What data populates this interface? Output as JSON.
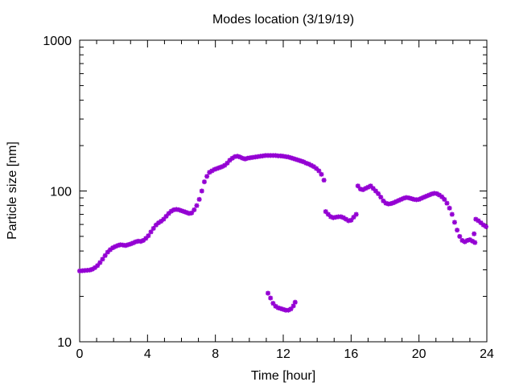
{
  "colors": {
    "series": "#9400d3",
    "axis": "#000000"
  },
  "chart_data": {
    "type": "scatter",
    "title": "Modes location (3/19/19)",
    "xlabel": "Time [hour]",
    "ylabel": "Particle size [nm]",
    "xlim": [
      0,
      24
    ],
    "ylim": [
      10,
      1000
    ],
    "yscale": "log",
    "grid": false,
    "legend": "none",
    "xticks": [
      0,
      4,
      8,
      12,
      16,
      20,
      24
    ],
    "xtick_labels": [
      "0",
      "4",
      "8",
      "12",
      "16",
      "20",
      "24"
    ],
    "yticks": [
      10,
      100,
      1000
    ],
    "ytick_labels": [
      "10",
      "100",
      "1000"
    ],
    "series": [
      {
        "marker": "star",
        "points": [
          [
            0.0,
            29.5
          ],
          [
            0.15,
            29.6
          ],
          [
            0.3,
            29.7
          ],
          [
            0.45,
            29.8
          ],
          [
            0.6,
            29.9
          ],
          [
            0.75,
            30.3
          ],
          [
            0.9,
            31.0
          ],
          [
            1.05,
            32.0
          ],
          [
            1.2,
            33.5
          ],
          [
            1.35,
            35.3
          ],
          [
            1.5,
            37.3
          ],
          [
            1.65,
            39.3
          ],
          [
            1.8,
            40.8
          ],
          [
            1.95,
            42.0
          ],
          [
            2.1,
            42.8
          ],
          [
            2.25,
            43.5
          ],
          [
            2.4,
            44.0
          ],
          [
            2.55,
            43.8
          ],
          [
            2.7,
            43.5
          ],
          [
            2.85,
            44.0
          ],
          [
            3.0,
            44.5
          ],
          [
            3.15,
            45.2
          ],
          [
            3.3,
            46.0
          ],
          [
            3.45,
            46.5
          ],
          [
            3.6,
            46.3
          ],
          [
            3.75,
            47.0
          ],
          [
            3.9,
            48.5
          ],
          [
            4.05,
            50.5
          ],
          [
            4.2,
            53.5
          ],
          [
            4.35,
            56.5
          ],
          [
            4.5,
            59.5
          ],
          [
            4.65,
            61.5
          ],
          [
            4.8,
            63.0
          ],
          [
            4.95,
            65.0
          ],
          [
            5.1,
            68.0
          ],
          [
            5.25,
            71.0
          ],
          [
            5.4,
            73.5
          ],
          [
            5.55,
            75.0
          ],
          [
            5.7,
            75.5
          ],
          [
            5.85,
            75.0
          ],
          [
            6.0,
            74.0
          ],
          [
            6.15,
            73.0
          ],
          [
            6.3,
            72.0
          ],
          [
            6.45,
            71.0
          ],
          [
            6.6,
            71.5
          ],
          [
            6.75,
            75.0
          ],
          [
            6.9,
            80.0
          ],
          [
            7.05,
            88.0
          ],
          [
            7.2,
            100.0
          ],
          [
            7.35,
            115.0
          ],
          [
            7.5,
            125.0
          ],
          [
            7.65,
            133.0
          ],
          [
            7.8,
            136.0
          ],
          [
            7.95,
            139.0
          ],
          [
            8.1,
            141.0
          ],
          [
            8.25,
            143.0
          ],
          [
            8.4,
            145.0
          ],
          [
            8.55,
            148.0
          ],
          [
            8.7,
            153.0
          ],
          [
            8.85,
            160.0
          ],
          [
            9.0,
            165.0
          ],
          [
            9.15,
            169.0
          ],
          [
            9.3,
            170.0
          ],
          [
            9.45,
            168.0
          ],
          [
            9.6,
            165.0
          ],
          [
            9.75,
            163.0
          ],
          [
            9.9,
            165.0
          ],
          [
            10.05,
            166.0
          ],
          [
            10.2,
            167.0
          ],
          [
            10.35,
            168.0
          ],
          [
            10.5,
            169.0
          ],
          [
            10.65,
            170.0
          ],
          [
            10.8,
            171.0
          ],
          [
            10.95,
            172.0
          ],
          [
            11.1,
            172.0
          ],
          [
            11.25,
            172.0
          ],
          [
            11.4,
            172.0
          ],
          [
            11.55,
            172.0
          ],
          [
            11.7,
            171.0
          ],
          [
            11.85,
            171.0
          ],
          [
            12.0,
            170.0
          ],
          [
            12.15,
            169.0
          ],
          [
            12.3,
            168.0
          ],
          [
            12.45,
            166.0
          ],
          [
            12.6,
            164.0
          ],
          [
            12.75,
            162.0
          ],
          [
            12.9,
            160.0
          ],
          [
            13.05,
            158.0
          ],
          [
            13.2,
            156.0
          ],
          [
            13.35,
            153.0
          ],
          [
            13.5,
            151.0
          ],
          [
            13.65,
            148.0
          ],
          [
            13.8,
            145.0
          ],
          [
            13.95,
            141.0
          ],
          [
            14.1,
            136.0
          ],
          [
            14.25,
            129.0
          ],
          [
            14.4,
            118.0
          ],
          [
            14.5,
            73.0
          ],
          [
            14.65,
            70.0
          ],
          [
            14.8,
            67.5
          ],
          [
            14.95,
            66.5
          ],
          [
            15.1,
            67.0
          ],
          [
            15.25,
            67.5
          ],
          [
            15.4,
            67.5
          ],
          [
            15.55,
            66.5
          ],
          [
            15.7,
            65.0
          ],
          [
            15.85,
            63.5
          ],
          [
            16.0,
            64.0
          ],
          [
            16.15,
            67.0
          ],
          [
            16.3,
            70.0
          ],
          [
            16.4,
            108.0
          ],
          [
            16.55,
            103.0
          ],
          [
            16.7,
            102.0
          ],
          [
            16.85,
            104.0
          ],
          [
            17.0,
            106.0
          ],
          [
            17.15,
            108.0
          ],
          [
            17.3,
            104.0
          ],
          [
            17.45,
            100.0
          ],
          [
            17.6,
            96.0
          ],
          [
            17.75,
            91.0
          ],
          [
            17.9,
            86.0
          ],
          [
            18.05,
            83.0
          ],
          [
            18.2,
            82.0
          ],
          [
            18.35,
            82.5
          ],
          [
            18.5,
            83.5
          ],
          [
            18.65,
            85.0
          ],
          [
            18.8,
            86.5
          ],
          [
            18.95,
            88.0
          ],
          [
            19.1,
            89.5
          ],
          [
            19.25,
            90.5
          ],
          [
            19.4,
            90.0
          ],
          [
            19.55,
            89.0
          ],
          [
            19.7,
            88.0
          ],
          [
            19.85,
            87.5
          ],
          [
            20.0,
            88.0
          ],
          [
            20.15,
            89.5
          ],
          [
            20.3,
            91.0
          ],
          [
            20.45,
            92.5
          ],
          [
            20.6,
            94.0
          ],
          [
            20.75,
            95.5
          ],
          [
            20.9,
            96.5
          ],
          [
            21.05,
            96.0
          ],
          [
            21.2,
            94.0
          ],
          [
            21.35,
            91.5
          ],
          [
            21.5,
            88.0
          ],
          [
            21.65,
            83.0
          ],
          [
            21.8,
            77.0
          ],
          [
            21.95,
            70.0
          ],
          [
            22.1,
            62.0
          ],
          [
            22.25,
            55.0
          ],
          [
            22.4,
            50.0
          ],
          [
            22.55,
            47.0
          ],
          [
            22.7,
            46.0
          ],
          [
            22.85,
            47.0
          ],
          [
            23.0,
            47.5
          ],
          [
            23.15,
            46.5
          ],
          [
            23.3,
            45.5
          ],
          [
            23.35,
            65.0
          ],
          [
            23.5,
            63.5
          ],
          [
            23.65,
            61.5
          ],
          [
            23.8,
            59.5
          ],
          [
            23.95,
            58.0
          ],
          [
            23.25,
            52.0
          ],
          [
            11.1,
            21.0
          ],
          [
            11.25,
            19.5
          ],
          [
            11.4,
            18.0
          ],
          [
            11.55,
            17.2
          ],
          [
            11.7,
            16.8
          ],
          [
            11.85,
            16.6
          ],
          [
            12.0,
            16.4
          ],
          [
            12.15,
            16.2
          ],
          [
            12.3,
            16.2
          ],
          [
            12.45,
            16.5
          ],
          [
            12.6,
            17.3
          ],
          [
            12.7,
            18.3
          ]
        ]
      }
    ]
  }
}
